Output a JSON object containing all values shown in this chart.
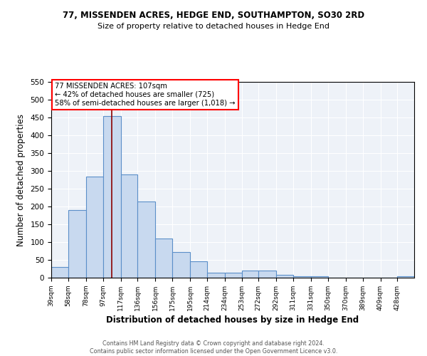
{
  "title_line1": "77, MISSENDEN ACRES, HEDGE END, SOUTHAMPTON, SO30 2RD",
  "title_line2": "Size of property relative to detached houses in Hedge End",
  "xlabel": "Distribution of detached houses by size in Hedge End",
  "ylabel": "Number of detached properties",
  "footnote": "Contains HM Land Registry data © Crown copyright and database right 2024.\nContains public sector information licensed under the Open Government Licence v3.0.",
  "bin_labels": [
    "39sqm",
    "58sqm",
    "78sqm",
    "97sqm",
    "117sqm",
    "136sqm",
    "156sqm",
    "175sqm",
    "195sqm",
    "214sqm",
    "234sqm",
    "253sqm",
    "272sqm",
    "292sqm",
    "311sqm",
    "331sqm",
    "350sqm",
    "370sqm",
    "389sqm",
    "409sqm",
    "428sqm"
  ],
  "bar_values": [
    30,
    190,
    285,
    455,
    290,
    215,
    110,
    73,
    46,
    14,
    14,
    20,
    20,
    9,
    5,
    5,
    0,
    0,
    0,
    0,
    5
  ],
  "bar_color": "#c8d9ef",
  "bar_edge_color": "#5b8fc9",
  "vline_color": "#8b0000",
  "ylim": [
    0,
    550
  ],
  "yticks": [
    0,
    50,
    100,
    150,
    200,
    250,
    300,
    350,
    400,
    450,
    500,
    550
  ],
  "annotation_text": "77 MISSENDEN ACRES: 107sqm\n← 42% of detached houses are smaller (725)\n58% of semi-detached houses are larger (1,018) →",
  "annotation_border_color": "red",
  "property_sqm": 107,
  "bin_edges_sqm": [
    39,
    58,
    78,
    97,
    117,
    136,
    156,
    175,
    195,
    214,
    234,
    253,
    272,
    292,
    311,
    331,
    350,
    370,
    389,
    409,
    428,
    447
  ]
}
